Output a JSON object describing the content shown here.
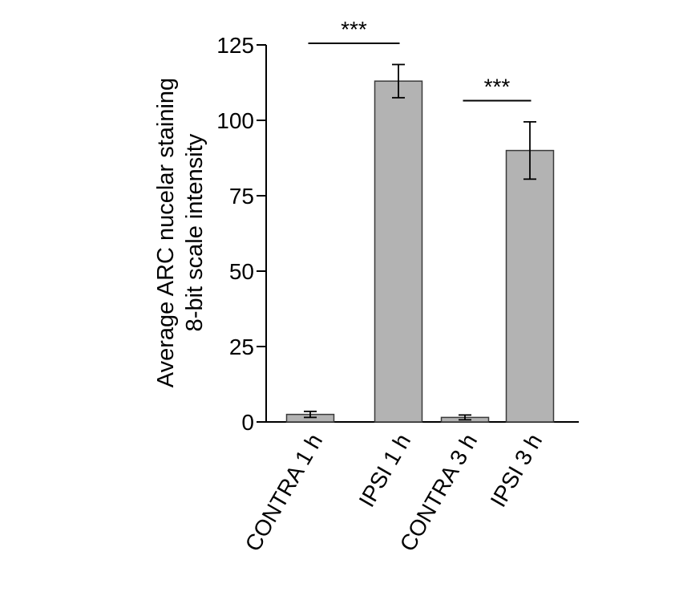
{
  "chart_data": {
    "type": "bar",
    "categories": [
      "CONTRA 1 h",
      "IPSI 1 h",
      "CONTRA 3 h",
      "IPSI 3 h"
    ],
    "values": [
      2.5,
      113,
      1.5,
      90
    ],
    "errors": [
      1.0,
      5.5,
      0.8,
      9.5
    ],
    "ylabel_line1": "Average ARC nucelar staining",
    "ylabel_line2": "8-bit scale intensity",
    "ylim": [
      0,
      125
    ],
    "yticks": [
      "0",
      "25",
      "50",
      "75",
      "100",
      "125"
    ],
    "grid": false,
    "legend": "none",
    "significance": [
      {
        "from": 0,
        "to": 1,
        "label": "***",
        "level": 125
      },
      {
        "from": 2,
        "to": 3,
        "label": "***",
        "level": 106
      }
    ],
    "colors": {
      "bar_fill": "#b3b3b3",
      "bar_stroke": "#3a3a3a",
      "axis": "#000000"
    }
  }
}
